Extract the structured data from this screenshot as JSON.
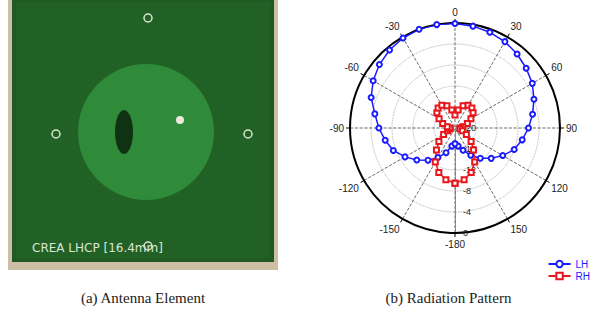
{
  "figure": {
    "panels": [
      {
        "caption": "(a) Antenna Element",
        "photo_text": "CREA LHCP [16.4mm]"
      },
      {
        "caption": "(b) Radiation Pattern"
      }
    ]
  },
  "chart_data": {
    "type": "polar_line",
    "x": [
      -180,
      -170,
      -160,
      -150,
      -140,
      -130,
      -120,
      -110,
      -100,
      -90,
      -80,
      -70,
      -60,
      -50,
      -40,
      -30,
      -20,
      -10,
      0,
      10,
      20,
      30,
      40,
      50,
      60,
      70,
      80,
      90,
      100,
      110,
      120,
      130,
      140,
      150,
      160,
      170
    ],
    "series": [
      {
        "name": "LH",
        "color": "#1a1aff",
        "marker": "circle",
        "values": [
          -17,
          -16.5,
          -15,
          -13.5,
          -12,
          -10.5,
          -9,
          -7.5,
          -6.5,
          -5.5,
          -4.5,
          -3,
          -2,
          -1.2,
          -0.6,
          -0.2,
          0,
          0,
          -0.1,
          -0.3,
          -0.6,
          -1,
          -1.6,
          -2.3,
          -3,
          -4,
          -5,
          -6,
          -7,
          -8,
          -9.5,
          -11,
          -12.5,
          -14,
          -15.5,
          -16.5
        ]
      },
      {
        "name": "RH",
        "color": "#e8161b",
        "marker": "square",
        "values": [
          -9.5,
          -10,
          -11,
          -12.5,
          -14.5,
          -16,
          -17.5,
          -18.5,
          -19,
          -19,
          -18.5,
          -17.5,
          -16.5,
          -15.5,
          -15,
          -15,
          -15.5,
          -16.5,
          -17.5,
          -16.5,
          -15.5,
          -15,
          -15,
          -15.5,
          -16.5,
          -17.5,
          -18.5,
          -19,
          -19,
          -18.5,
          -17.5,
          -16,
          -14.5,
          -12.5,
          -11,
          -10
        ]
      }
    ],
    "xlim": [
      -180,
      180
    ],
    "xticks": [
      -180,
      -150,
      -120,
      -90,
      -60,
      -30,
      0,
      30,
      60,
      90,
      120,
      150
    ],
    "ylim": [
      -20,
      0
    ],
    "yticks": [
      -20,
      -16,
      -12,
      -8,
      -4,
      0
    ],
    "grid": true,
    "legend": "lower right"
  }
}
